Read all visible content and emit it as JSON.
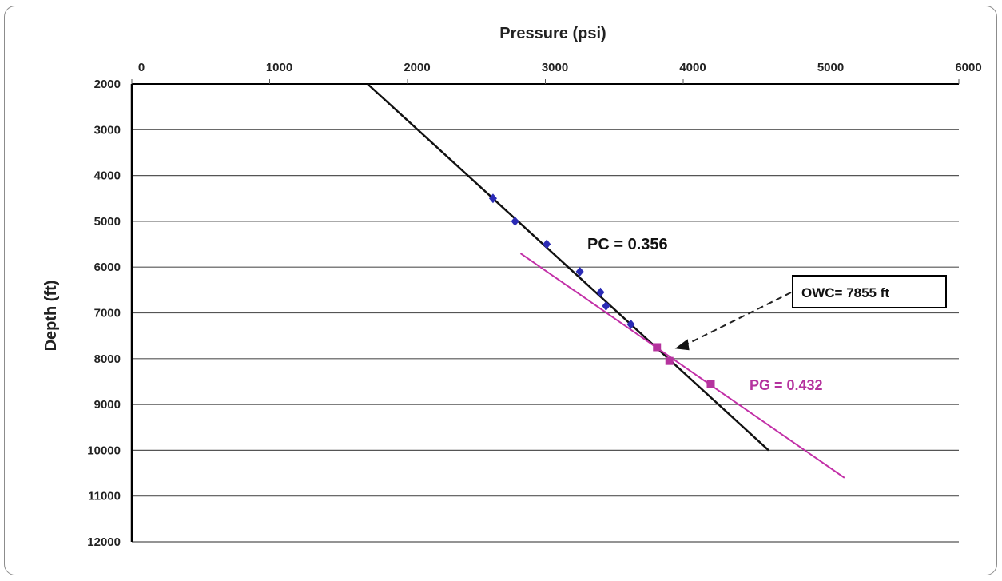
{
  "chart_data": {
    "type": "scatter",
    "title": "",
    "xlabel": "Pressure (psi)",
    "ylabel": "Depth (ft)",
    "x_axis_position": "top",
    "y_inverted": true,
    "xlim": [
      0,
      6000
    ],
    "ylim": [
      2000,
      12000
    ],
    "x_ticks": [
      "0",
      "1000",
      "2000",
      "3000",
      "4000",
      "5000",
      "6000"
    ],
    "y_ticks": [
      "2000",
      "3000",
      "4000",
      "5000",
      "6000",
      "7000",
      "8000",
      "9000",
      "10000",
      "11000",
      "12000"
    ],
    "grid": "horizontal",
    "series": [
      {
        "color": "#2b2bb5",
        "marker": "diamond",
        "points": [
          [
            2620,
            4500
          ],
          [
            2780,
            5000
          ],
          [
            3010,
            5500
          ],
          [
            3250,
            6100
          ],
          [
            3400,
            6550
          ],
          [
            3440,
            6850
          ],
          [
            3620,
            7250
          ]
        ]
      },
      {
        "color": "#b5339e",
        "marker": "square",
        "points": [
          [
            3810,
            7750
          ],
          [
            3900,
            8050
          ],
          [
            4200,
            8550
          ]
        ]
      }
    ],
    "trendlines": [
      {
        "color": "#111111",
        "from": [
          1710,
          2000
        ],
        "to": [
          4620,
          10000
        ]
      },
      {
        "color": "#c22fa7",
        "from": [
          2820,
          5700
        ],
        "to": [
          5170,
          10600
        ]
      }
    ],
    "annotations": {
      "pc_label": "PC = 0.356",
      "pg_label": "PG = 0.432",
      "owc_label": "OWC=  7855 ft",
      "owc_point": [
        3940,
        7780
      ]
    }
  }
}
